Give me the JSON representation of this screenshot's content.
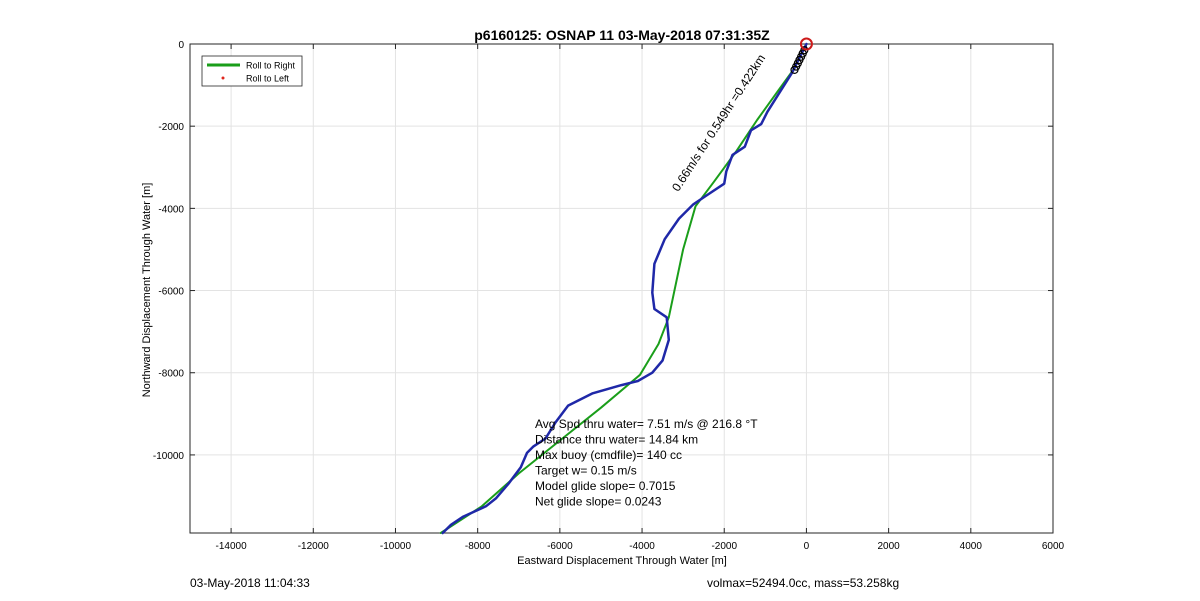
{
  "chart_data": {
    "type": "line",
    "title": "p6160125: OSNAP 11 03-May-2018 07:31:35Z",
    "xlabel": "Eastward Displacement Through Water [m]",
    "ylabel": "Northward Displacement Through Water [m]",
    "xlim": [
      -15000,
      6000
    ],
    "ylim": [
      -11900,
      0
    ],
    "grid": true,
    "x_ticks": [
      -14000,
      -12000,
      -10000,
      -8000,
      -6000,
      -4000,
      -2000,
      0,
      2000,
      4000,
      6000
    ],
    "y_ticks": [
      0,
      -2000,
      -4000,
      -6000,
      -8000,
      -10000
    ],
    "legend": {
      "placement": "top-left",
      "entries": [
        {
          "name": "Roll to Right",
          "color": "#1a9e1a",
          "marker": "line"
        },
        {
          "name": "Roll to Left",
          "color": "#e0261d",
          "marker": "dot"
        }
      ]
    },
    "series": [
      {
        "name": "Roll to Right",
        "color": "#1a9e1a",
        "x": [
          0,
          -300,
          -700,
          -1200,
          -1700,
          -2250,
          -2700,
          -3000,
          -3350,
          -3600,
          -3900,
          -4050,
          -5000,
          -6000,
          -7000,
          -7900,
          -8900
        ],
        "y": [
          0,
          -600,
          -1150,
          -1850,
          -2600,
          -3350,
          -3950,
          -5000,
          -6650,
          -7300,
          -7800,
          -8050,
          -8850,
          -9650,
          -10450,
          -11250,
          -11900
        ]
      },
      {
        "color": "#1f28a8",
        "x": [
          0,
          -350,
          -700,
          -950,
          -1100,
          -1350,
          -1500,
          -1800,
          -1950,
          -2000,
          -2450,
          -2750,
          -3100,
          -3450,
          -3700,
          -3750,
          -3700,
          -3400,
          -3350,
          -3500,
          -3750,
          -4100,
          -4500,
          -5200,
          -5800,
          -6100,
          -6350,
          -6650,
          -6800,
          -6950,
          -7250,
          -7550,
          -7800,
          -8350,
          -8650,
          -8850
        ],
        "y": [
          0,
          -700,
          -1250,
          -1650,
          -1950,
          -2100,
          -2500,
          -2700,
          -3100,
          -3400,
          -3700,
          -3900,
          -4250,
          -4750,
          -5350,
          -6050,
          -6450,
          -6650,
          -7200,
          -7700,
          -8000,
          -8200,
          -8300,
          -8500,
          -8800,
          -9200,
          -9600,
          -9800,
          -9950,
          -10300,
          -10700,
          -11050,
          -11250,
          -11500,
          -11700,
          -11900
        ]
      }
    ],
    "start_marker": {
      "x": 0,
      "y": 0,
      "color": "#cc1a1a"
    },
    "dive_markers_x": [
      -50,
      -90,
      -130,
      -170,
      -210,
      -250,
      -290
    ],
    "dive_markers_y": [
      -150,
      -230,
      -310,
      -390,
      -470,
      -550,
      -630
    ],
    "segment_label": "0.66m/s for 0.549hr =0.422km",
    "annotations": [
      "Avg Spd thru water=  7.51 m/s @ 216.8 °T",
      "Distance thru water= 14.84 km",
      "Max buoy (cmdfile)= 140 cc",
      "Target w= 0.15 m/s",
      "Model glide slope= 0.7015",
      "Net glide slope= 0.0243"
    ]
  },
  "footer": {
    "left": "03-May-2018 11:04:33",
    "right": "volmax=52494.0cc, mass=53.258kg"
  }
}
